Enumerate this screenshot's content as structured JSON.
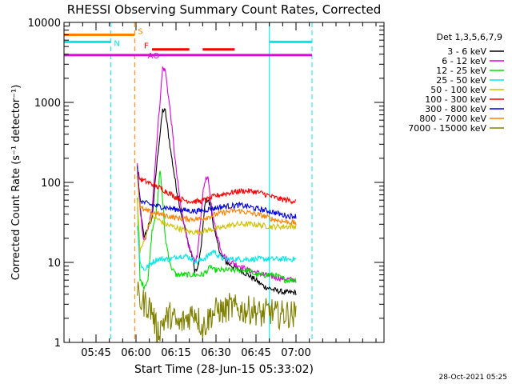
{
  "chart_data": {
    "type": "line",
    "title": "RHESSI Observing Summary Count Rates, Corrected",
    "xlabel": "Start Time (28-Jun-15 05:33:02)",
    "ylabel": "Corrected Count Rate (s⁻¹ detector⁻¹)",
    "yscale": "log",
    "ylim": [
      1,
      10000
    ],
    "xlim_min": [
      0,
      120
    ],
    "x_ticks": [
      {
        "label": "05:45",
        "min": 12
      },
      {
        "label": "06:00",
        "min": 27
      },
      {
        "label": "06:15",
        "min": 42
      },
      {
        "label": "06:30",
        "min": 57
      },
      {
        "label": "06:45",
        "min": 72
      },
      {
        "label": "07:00",
        "min": 87
      }
    ],
    "y_ticks": [
      {
        "label": "1",
        "value": 1
      },
      {
        "label": "10",
        "value": 10
      },
      {
        "label": "100",
        "value": 100
      },
      {
        "label": "1000",
        "value": 1000
      },
      {
        "label": "10000",
        "value": 10000
      }
    ],
    "legend": {
      "title": "Det 1,3,5,6,7,9",
      "position": "right"
    },
    "series": [
      {
        "name": "3 - 6 keV",
        "color": "#000000",
        "points": [
          [
            27.5,
            160
          ],
          [
            28.5,
            50
          ],
          [
            30,
            20
          ],
          [
            31.5,
            28
          ],
          [
            33,
            35
          ],
          [
            35,
            200
          ],
          [
            37,
            800
          ],
          [
            38,
            780
          ],
          [
            40,
            250
          ],
          [
            42,
            90
          ],
          [
            44,
            40
          ],
          [
            46,
            22
          ],
          [
            47,
            15
          ],
          [
            48,
            12
          ],
          [
            49,
            8
          ],
          [
            50,
            8
          ],
          [
            51,
            12
          ],
          [
            52,
            25
          ],
          [
            53,
            60
          ],
          [
            54,
            60
          ],
          [
            55,
            50
          ],
          [
            56,
            30
          ],
          [
            57,
            20
          ],
          [
            59,
            12
          ],
          [
            61,
            10
          ],
          [
            63,
            9
          ],
          [
            66,
            8
          ],
          [
            69,
            7
          ],
          [
            72,
            6
          ],
          [
            75,
            5
          ],
          [
            79,
            4.5
          ],
          [
            83,
            4.2
          ],
          [
            87,
            4.2
          ]
        ]
      },
      {
        "name": "6 - 12 keV",
        "color": "#e000e0",
        "points": [
          [
            27.5,
            170
          ],
          [
            28.5,
            45
          ],
          [
            30,
            18
          ],
          [
            31.5,
            25
          ],
          [
            33,
            45
          ],
          [
            35,
            400
          ],
          [
            37,
            2700
          ],
          [
            38,
            2500
          ],
          [
            40,
            700
          ],
          [
            42,
            150
          ],
          [
            44,
            45
          ],
          [
            46,
            22
          ],
          [
            47,
            15
          ],
          [
            48,
            12
          ],
          [
            49,
            10
          ],
          [
            50,
            12
          ],
          [
            51,
            28
          ],
          [
            52,
            70
          ],
          [
            53,
            110
          ],
          [
            54,
            110
          ],
          [
            55,
            60
          ],
          [
            56,
            35
          ],
          [
            57,
            25
          ],
          [
            59,
            14
          ],
          [
            61,
            11
          ],
          [
            63,
            10
          ],
          [
            66,
            9
          ],
          [
            69,
            8
          ],
          [
            72,
            7.5
          ],
          [
            75,
            7
          ],
          [
            79,
            6.5
          ],
          [
            83,
            6.2
          ],
          [
            87,
            6
          ]
        ]
      },
      {
        "name": "12 - 25 keV",
        "color": "#00e000",
        "points": [
          [
            27.5,
            60
          ],
          [
            28.5,
            6
          ],
          [
            30,
            5
          ],
          [
            31.5,
            6
          ],
          [
            33,
            25
          ],
          [
            35,
            50
          ],
          [
            36,
            150
          ],
          [
            37,
            60
          ],
          [
            38,
            20
          ],
          [
            40,
            9
          ],
          [
            42,
            7
          ],
          [
            44,
            7
          ],
          [
            46,
            7
          ],
          [
            48,
            7
          ],
          [
            50,
            7
          ],
          [
            52,
            7
          ],
          [
            54,
            8
          ],
          [
            55,
            9
          ],
          [
            56,
            8
          ],
          [
            58,
            8
          ],
          [
            60,
            8
          ],
          [
            63,
            8
          ],
          [
            66,
            8
          ],
          [
            69,
            8
          ],
          [
            72,
            7
          ],
          [
            75,
            7
          ],
          [
            79,
            7
          ],
          [
            83,
            6
          ],
          [
            87,
            6
          ]
        ]
      },
      {
        "name": "25 - 50 keV",
        "color": "#00e8e8",
        "points": [
          [
            27.5,
            30
          ],
          [
            28.5,
            10
          ],
          [
            30,
            8
          ],
          [
            31.5,
            9
          ],
          [
            33,
            10
          ],
          [
            35,
            11
          ],
          [
            37,
            11
          ],
          [
            40,
            11
          ],
          [
            43,
            12
          ],
          [
            46,
            12
          ],
          [
            48,
            11
          ],
          [
            50,
            10
          ],
          [
            52,
            11
          ],
          [
            54,
            12
          ],
          [
            56,
            14
          ],
          [
            58,
            12
          ],
          [
            60,
            11
          ],
          [
            63,
            11
          ],
          [
            66,
            11
          ],
          [
            70,
            11
          ],
          [
            74,
            11
          ],
          [
            78,
            11
          ],
          [
            82,
            11
          ],
          [
            87,
            11
          ]
        ]
      },
      {
        "name": "50 - 100 keV",
        "color": "#d0c000",
        "points": [
          [
            27.5,
            60
          ],
          [
            28.5,
            14
          ],
          [
            30,
            18
          ],
          [
            31.5,
            28
          ],
          [
            33,
            38
          ],
          [
            35,
            35
          ],
          [
            38,
            30
          ],
          [
            41,
            28
          ],
          [
            44,
            26
          ],
          [
            47,
            24
          ],
          [
            50,
            24
          ],
          [
            53,
            25
          ],
          [
            56,
            26
          ],
          [
            59,
            27
          ],
          [
            62,
            29
          ],
          [
            65,
            30
          ],
          [
            68,
            30
          ],
          [
            71,
            30
          ],
          [
            74,
            29
          ],
          [
            78,
            28
          ],
          [
            82,
            28
          ],
          [
            87,
            28
          ]
        ]
      },
      {
        "name": "100 - 300 keV",
        "color": "#ff0000",
        "points": [
          [
            27.5,
            140
          ],
          [
            28.5,
            110
          ],
          [
            30,
            105
          ],
          [
            33,
            95
          ],
          [
            36,
            85
          ],
          [
            39,
            75
          ],
          [
            42,
            65
          ],
          [
            45,
            60
          ],
          [
            48,
            58
          ],
          [
            51,
            58
          ],
          [
            54,
            62
          ],
          [
            57,
            68
          ],
          [
            60,
            72
          ],
          [
            63,
            75
          ],
          [
            66,
            78
          ],
          [
            69,
            78
          ],
          [
            72,
            76
          ],
          [
            75,
            72
          ],
          [
            78,
            66
          ],
          [
            81,
            62
          ],
          [
            84,
            60
          ],
          [
            87,
            58
          ]
        ]
      },
      {
        "name": "300 - 800 keV",
        "color": "#0000e0",
        "points": [
          [
            27.5,
            150
          ],
          [
            28.5,
            60
          ],
          [
            30,
            56
          ],
          [
            33,
            52
          ],
          [
            36,
            50
          ],
          [
            39,
            48
          ],
          [
            42,
            46
          ],
          [
            45,
            45
          ],
          [
            48,
            44
          ],
          [
            51,
            44
          ],
          [
            54,
            46
          ],
          [
            57,
            48
          ],
          [
            60,
            50
          ],
          [
            63,
            51
          ],
          [
            66,
            52
          ],
          [
            69,
            50
          ],
          [
            72,
            47
          ],
          [
            75,
            45
          ],
          [
            78,
            43
          ],
          [
            81,
            40
          ],
          [
            84,
            38
          ],
          [
            87,
            38
          ]
        ]
      },
      {
        "name": "800 - 7000 keV",
        "color": "#ff8000",
        "points": [
          [
            27.5,
            120
          ],
          [
            28.5,
            48
          ],
          [
            30,
            45
          ],
          [
            33,
            42
          ],
          [
            36,
            40
          ],
          [
            39,
            38
          ],
          [
            42,
            36
          ],
          [
            45,
            35
          ],
          [
            48,
            35
          ],
          [
            51,
            35
          ],
          [
            54,
            37
          ],
          [
            57,
            40
          ],
          [
            60,
            42
          ],
          [
            63,
            44
          ],
          [
            66,
            44
          ],
          [
            69,
            42
          ],
          [
            72,
            40
          ],
          [
            75,
            38
          ],
          [
            78,
            35
          ],
          [
            81,
            33
          ],
          [
            84,
            32
          ],
          [
            87,
            31
          ]
        ]
      },
      {
        "name": "7000 - 15000 keV",
        "color": "#808000",
        "points": [
          [
            27.5,
            4
          ],
          [
            28.5,
            3.3
          ],
          [
            31,
            3
          ],
          [
            33,
            2.5
          ],
          [
            35,
            1.3
          ],
          [
            37,
            1.8
          ],
          [
            40,
            2.2
          ],
          [
            43,
            1.6
          ],
          [
            46,
            2
          ],
          [
            49,
            2.5
          ],
          [
            52,
            1.5
          ],
          [
            55,
            2.2
          ],
          [
            58,
            2.6
          ],
          [
            60,
            2.4
          ],
          [
            62,
            2.8
          ],
          [
            65,
            2.6
          ],
          [
            68,
            2.5
          ],
          [
            71,
            2.6
          ],
          [
            74,
            2.2
          ],
          [
            77,
            2.5
          ],
          [
            80,
            2.2
          ],
          [
            83,
            2.3
          ],
          [
            87,
            2.2
          ]
        ]
      }
    ],
    "state_bars": [
      {
        "label": "S",
        "color": "#ff8000",
        "y_value": 7000,
        "segments": [
          [
            0,
            26.5
          ]
        ]
      },
      {
        "label": "N",
        "color": "#00e8e8",
        "y_value": 5700,
        "segments": [
          [
            0,
            17.5
          ],
          [
            77,
            93
          ]
        ]
      },
      {
        "label": "F",
        "color": "#ff0000",
        "y_value": 4600,
        "segments": [
          [
            33,
            47
          ],
          [
            52,
            64
          ]
        ]
      },
      {
        "label": "AO",
        "color": "#e000e0",
        "y_value": 3900,
        "segments": [
          [
            0,
            93
          ]
        ]
      }
    ],
    "vertical_lines": [
      {
        "color": "#00e8e8",
        "min": 0,
        "style": "solid"
      },
      {
        "color": "#00e8e8",
        "min": 17.5,
        "style": "dashed"
      },
      {
        "color": "#ff8000",
        "min": 26.5,
        "style": "dashed"
      },
      {
        "color": "#00e8e8",
        "min": 77,
        "style": "solid"
      },
      {
        "color": "#00e8e8",
        "min": 93,
        "style": "dashed"
      }
    ],
    "footer_date": "28-Oct-2021 05:25"
  }
}
